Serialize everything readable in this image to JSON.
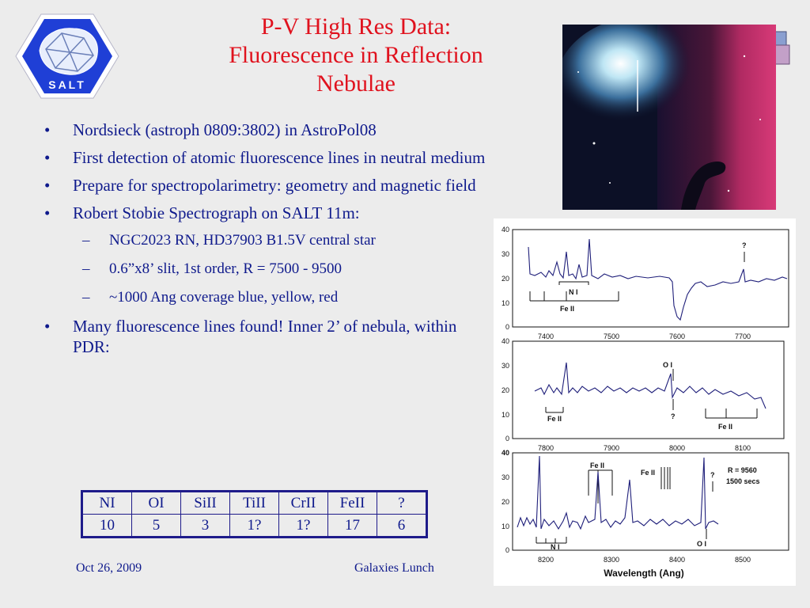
{
  "title": {
    "lines": [
      "P-V High Res Data:",
      "Fluorescence in Reflection",
      "Nebulae"
    ]
  },
  "logo": {
    "text": "SALT"
  },
  "bullets": [
    "Nordsieck (astroph 0809:3802) in AstroPol08",
    "First detection of atomic fluorescence lines in neutral medium",
    "Prepare for spectropolarimetry: geometry and magnetic field",
    "Robert Stobie Spectrograph on SALT 11m:",
    "Many fluorescence lines found!  Inner 2’ of nebula, within PDR:"
  ],
  "sub_bullets": [
    "NGC2023 RN, HD37903 B1.5V central star",
    "0.6”x8’ slit, 1st order, R = 7500 - 9500",
    "~1000 Ang coverage blue, yellow, red"
  ],
  "bullet_symbol": "•",
  "dash_symbol": "–",
  "table": {
    "headers": [
      "NI",
      "OI",
      "SiII",
      "TiII",
      "CrII",
      "FeII",
      "?"
    ],
    "values": [
      "10",
      "5",
      "3",
      "1?",
      "1?",
      "17",
      "6"
    ]
  },
  "footer": {
    "date": "Oct 26, 2009",
    "event": "Galaxies Lunch"
  },
  "spectra": {
    "panels": [
      {
        "xticks": [
          "7400",
          "7500",
          "7600",
          "7700"
        ],
        "yticks": [
          "0",
          "10",
          "20",
          "30",
          "40"
        ],
        "labels": [
          "N I",
          "Fe II",
          "?"
        ]
      },
      {
        "xticks": [
          "7800",
          "7900",
          "8000",
          "8100"
        ],
        "yticks": [
          "0",
          "10",
          "20",
          "30",
          "40"
        ],
        "labels": [
          "O I",
          "Fe II",
          "?",
          "Fe II"
        ]
      },
      {
        "xticks": [
          "8200",
          "8300",
          "8400",
          "8500"
        ],
        "yticks": [
          "0",
          "10",
          "20",
          "30",
          "40"
        ],
        "labels": [
          "Fe II",
          "Fe II",
          "N I",
          "O I",
          "?",
          "R = 9560",
          "1500 secs"
        ]
      }
    ],
    "xlabel": "Wavelength (Ang)"
  },
  "colors": {
    "title": "#e0121e",
    "text": "#0f1a8c",
    "background": "#ececec",
    "spectrum_line": "#1f1f7a"
  }
}
